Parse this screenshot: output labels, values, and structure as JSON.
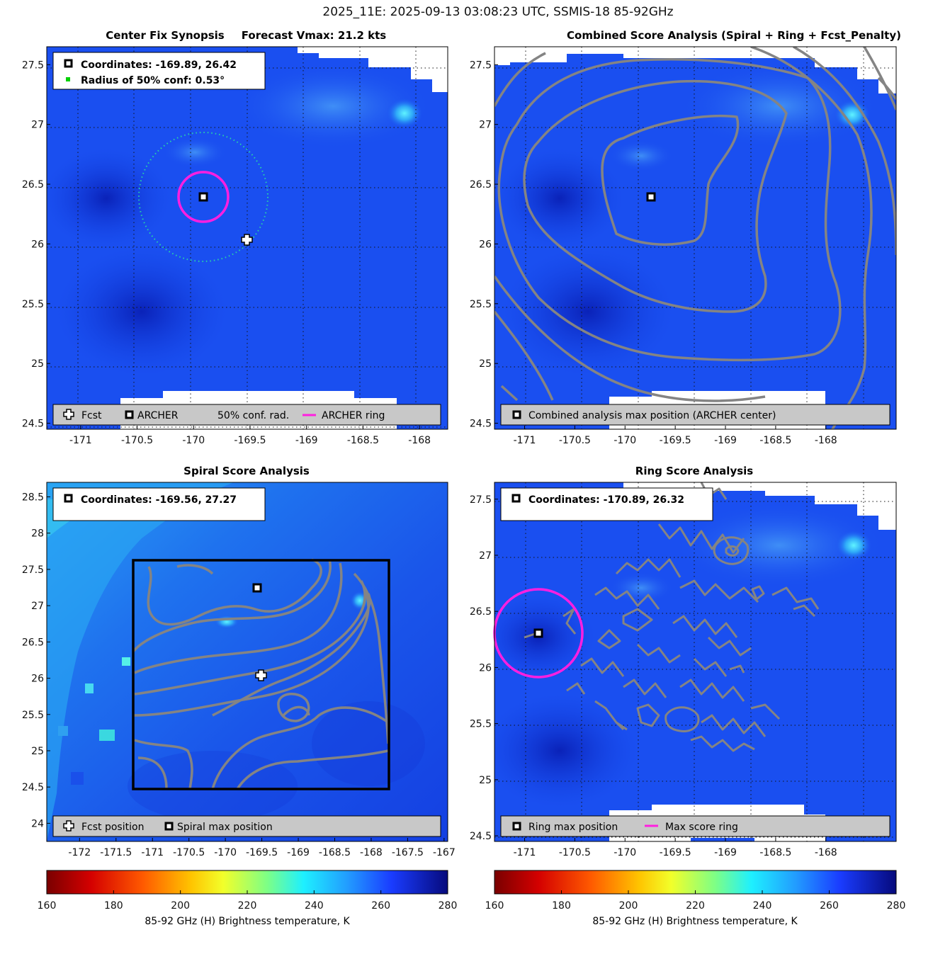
{
  "figure_title": "2025_11E: 2025-09-13 03:08:23 UTC, SSMIS-18 85-92GHz",
  "colors": {
    "field_dark": "#0b2fd6",
    "field_mid": "#1a4ff0",
    "field_light": "#2b7af5",
    "field_cyan": "#34c6f2",
    "contour": "#848484",
    "ring": "#ff1fe0",
    "conf_circle": "#27d3a8",
    "legend_bg": "#c8c8c8",
    "grid": "#111111"
  },
  "icons": {
    "fcst": "white-cross-marker",
    "archer": "black-square-marker",
    "conf": "green-dot-marker",
    "ring": "magenta-line"
  },
  "chart_data": [
    {
      "type": "heatmap",
      "panel": "center-fix",
      "title": "Center Fix Synopsis",
      "title2": "Forecast Vmax: 21.2 kts",
      "xlim": [
        -171.3,
        -167.75
      ],
      "ylim": [
        24.45,
        27.65
      ],
      "xticks": [
        -171,
        -170.5,
        -170,
        -169.5,
        -169,
        -168.5,
        -168
      ],
      "xtick_labels": [
        "-171",
        "-170.5",
        "-170",
        "-169.5",
        "-169",
        "-168.5",
        "-168"
      ],
      "yticks": [
        24.5,
        25,
        25.5,
        26,
        26.5,
        27,
        27.5
      ],
      "ytick_labels": [
        "24.5",
        "25",
        "25.5",
        "26",
        "26.5",
        "27",
        "27.5"
      ],
      "info_lines": [
        "Coordinates: -169.89, 26.42",
        "Radius of 50% conf: 0.53°"
      ],
      "legend": [
        "Fcst",
        "ARCHER",
        "50% conf. rad.",
        "ARCHER ring"
      ],
      "archer_center": [
        -169.89,
        26.42
      ],
      "fcst_position": [
        -169.51,
        26.07
      ],
      "conf_radius_deg": 0.53,
      "ring_radius_deg": 0.22
    },
    {
      "type": "heatmap",
      "panel": "combined",
      "title": "Combined Score Analysis (Spiral + Ring + Fcst_Penalty)",
      "xlim": [
        -171.3,
        -167.3
      ],
      "ylim": [
        24.45,
        27.65
      ],
      "xticks": [
        -171,
        -170.5,
        -170,
        -169.5,
        -169,
        -168.5,
        -168
      ],
      "xtick_labels": [
        "-171",
        "-170.5",
        "-170",
        "-169.5",
        "-169",
        "-168.5",
        "-168"
      ],
      "yticks": [
        24.5,
        25,
        25.5,
        26,
        26.5,
        27,
        27.5
      ],
      "ytick_labels": [
        "24.5",
        "25",
        "25.5",
        "26",
        "26.5",
        "27",
        "27.5"
      ],
      "legend": [
        "Combined analysis max position (ARCHER center)"
      ],
      "max_position": [
        -169.89,
        26.42
      ]
    },
    {
      "type": "heatmap",
      "panel": "spiral",
      "title": "Spiral Score Analysis",
      "xlim": [
        -172.45,
        -166.95
      ],
      "ylim": [
        23.75,
        28.7
      ],
      "xticks": [
        -172,
        -171.5,
        -171,
        -170.5,
        -170,
        -169.5,
        -169,
        -168.5,
        -168,
        -167.5,
        -167
      ],
      "xtick_labels": [
        "-172",
        "-171.5",
        "-171",
        "-170.5",
        "-170",
        "-169.5",
        "-169",
        "-168.5",
        "-168",
        "-167.5",
        "-167"
      ],
      "yticks": [
        24,
        24.5,
        25,
        25.5,
        26,
        26.5,
        27,
        27.5,
        28,
        28.5
      ],
      "ytick_labels": [
        "24",
        "24.5",
        "25",
        "25.5",
        "26",
        "26.5",
        "27",
        "27.5",
        "28",
        "28.5"
      ],
      "info_lines": [
        "Coordinates: -169.56, 27.27"
      ],
      "legend": [
        "Fcst position",
        "Spiral max position"
      ],
      "spiral_max": [
        -169.56,
        27.27
      ],
      "fcst_position": [
        -169.51,
        26.07
      ],
      "search_box": {
        "x": [
          -171.28,
          -167.77
        ],
        "y": [
          24.48,
          27.67
        ]
      }
    },
    {
      "type": "heatmap",
      "panel": "ring",
      "title": "Ring Score Analysis",
      "xlim": [
        -171.3,
        -167.3
      ],
      "ylim": [
        24.45,
        27.65
      ],
      "xticks": [
        -171,
        -170.5,
        -170,
        -169.5,
        -169,
        -168.5,
        -168
      ],
      "xtick_labels": [
        "-171",
        "-170.5",
        "-170",
        "-169.5",
        "-169",
        "-168.5",
        "-168"
      ],
      "yticks": [
        24.5,
        25,
        25.5,
        26,
        26.5,
        27,
        27.5
      ],
      "ytick_labels": [
        "24.5",
        "25",
        "25.5",
        "26",
        "26.5",
        "27",
        "27.5"
      ],
      "info_lines": [
        "Coordinates: -170.89, 26.32"
      ],
      "legend": [
        "Ring max position",
        "Max score ring"
      ],
      "ring_max": [
        -170.89,
        26.32
      ],
      "ring_radius_deg": 0.35
    }
  ],
  "colorbar": {
    "ticks": [
      160,
      180,
      200,
      220,
      240,
      260,
      280
    ],
    "tick_labels": [
      "160",
      "180",
      "200",
      "220",
      "240",
      "260",
      "280"
    ],
    "label": "85-92 GHz (H) Brightness temperature, K",
    "range": [
      160,
      280
    ]
  }
}
